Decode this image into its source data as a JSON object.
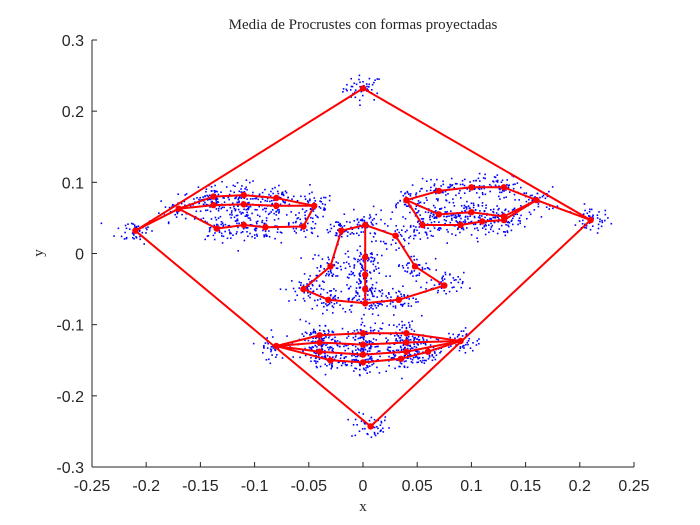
{
  "chart_data": {
    "type": "scatter",
    "title": "Media de Procrustes con formas proyectadas",
    "xlabel": "x",
    "ylabel": "y",
    "xlim": [
      -0.25,
      0.25
    ],
    "ylim": [
      -0.3,
      0.3
    ],
    "x_ticks": [
      "-0.25",
      "-0.2",
      "-0.15",
      "-0.1",
      "-0.05",
      "0",
      "0.05",
      "0.1",
      "0.15",
      "0.2",
      "0.25"
    ],
    "y_ticks": [
      "-0.3",
      "-0.2",
      "-0.1",
      "0",
      "0.1",
      "0.2",
      "0.3"
    ],
    "box": "left-bottom axes only",
    "grid": false,
    "colors": {
      "points": "#0000ff",
      "mean_shape": "#ff0000",
      "axes": "#262626"
    },
    "series": [
      {
        "role": "projected shapes (scattered landmarks)",
        "marker": "dot",
        "scatter_spread": 0.009,
        "points_per_landmark": 45
      },
      {
        "role": "Procrustes mean shape",
        "marker": "circle",
        "landmarks": [
          [
            0.0,
            0.232
          ],
          [
            0.21,
            0.047
          ],
          [
            0.007,
            -0.243
          ],
          [
            -0.21,
            0.032
          ],
          [
            -0.17,
            0.063
          ],
          [
            -0.138,
            0.08
          ],
          [
            -0.11,
            0.082
          ],
          [
            -0.08,
            0.078
          ],
          [
            -0.045,
            0.067
          ],
          [
            -0.055,
            0.038
          ],
          [
            -0.09,
            0.037
          ],
          [
            -0.11,
            0.04
          ],
          [
            -0.135,
            0.035
          ],
          [
            -0.138,
            0.068
          ],
          [
            -0.11,
            0.069
          ],
          [
            -0.08,
            0.067
          ],
          [
            0.04,
            0.075
          ],
          [
            0.07,
            0.088
          ],
          [
            0.1,
            0.093
          ],
          [
            0.13,
            0.093
          ],
          [
            0.16,
            0.075
          ],
          [
            0.13,
            0.047
          ],
          [
            0.11,
            0.045
          ],
          [
            0.09,
            0.04
          ],
          [
            0.055,
            0.04
          ],
          [
            0.07,
            0.055
          ],
          [
            0.1,
            0.058
          ],
          [
            0.13,
            0.052
          ],
          [
            0.002,
            0.04
          ],
          [
            -0.02,
            0.032
          ],
          [
            0.03,
            0.025
          ],
          [
            -0.03,
            -0.018
          ],
          [
            0.048,
            -0.018
          ],
          [
            -0.055,
            -0.05
          ],
          [
            0.075,
            -0.045
          ],
          [
            -0.032,
            -0.065
          ],
          [
            0.002,
            -0.07
          ],
          [
            0.033,
            -0.065
          ],
          [
            0.002,
            -0.005
          ],
          [
            0.002,
            -0.03
          ],
          [
            0.002,
            -0.05
          ],
          [
            -0.08,
            -0.13
          ],
          [
            -0.04,
            -0.115
          ],
          [
            0.0,
            -0.112
          ],
          [
            0.04,
            -0.112
          ],
          [
            0.09,
            -0.123
          ],
          [
            -0.04,
            -0.125
          ],
          [
            0.0,
            -0.128
          ],
          [
            0.04,
            -0.125
          ],
          [
            -0.04,
            -0.138
          ],
          [
            0.0,
            -0.142
          ],
          [
            0.04,
            -0.138
          ],
          [
            -0.03,
            -0.15
          ],
          [
            0.0,
            -0.153
          ],
          [
            0.035,
            -0.148
          ],
          [
            0.06,
            -0.138
          ]
        ],
        "polylines": [
          [
            0,
            1,
            2,
            3,
            0
          ],
          [
            3,
            4,
            5,
            6,
            7,
            8,
            9,
            10,
            11,
            12,
            4
          ],
          [
            4,
            13,
            14,
            15,
            8
          ],
          [
            1,
            20,
            19,
            18,
            17,
            16,
            24,
            23,
            22,
            21,
            20
          ],
          [
            16,
            25,
            26,
            27,
            20
          ],
          [
            28,
            29,
            31,
            33,
            35,
            36,
            37,
            34,
            32,
            30,
            28
          ],
          [
            28,
            38,
            39,
            40,
            36
          ],
          [
            41,
            42,
            43,
            44,
            45
          ],
          [
            41,
            46,
            47,
            48,
            45
          ],
          [
            41,
            49,
            50,
            51,
            45
          ],
          [
            41,
            52,
            53,
            54,
            55,
            45
          ]
        ]
      }
    ]
  }
}
